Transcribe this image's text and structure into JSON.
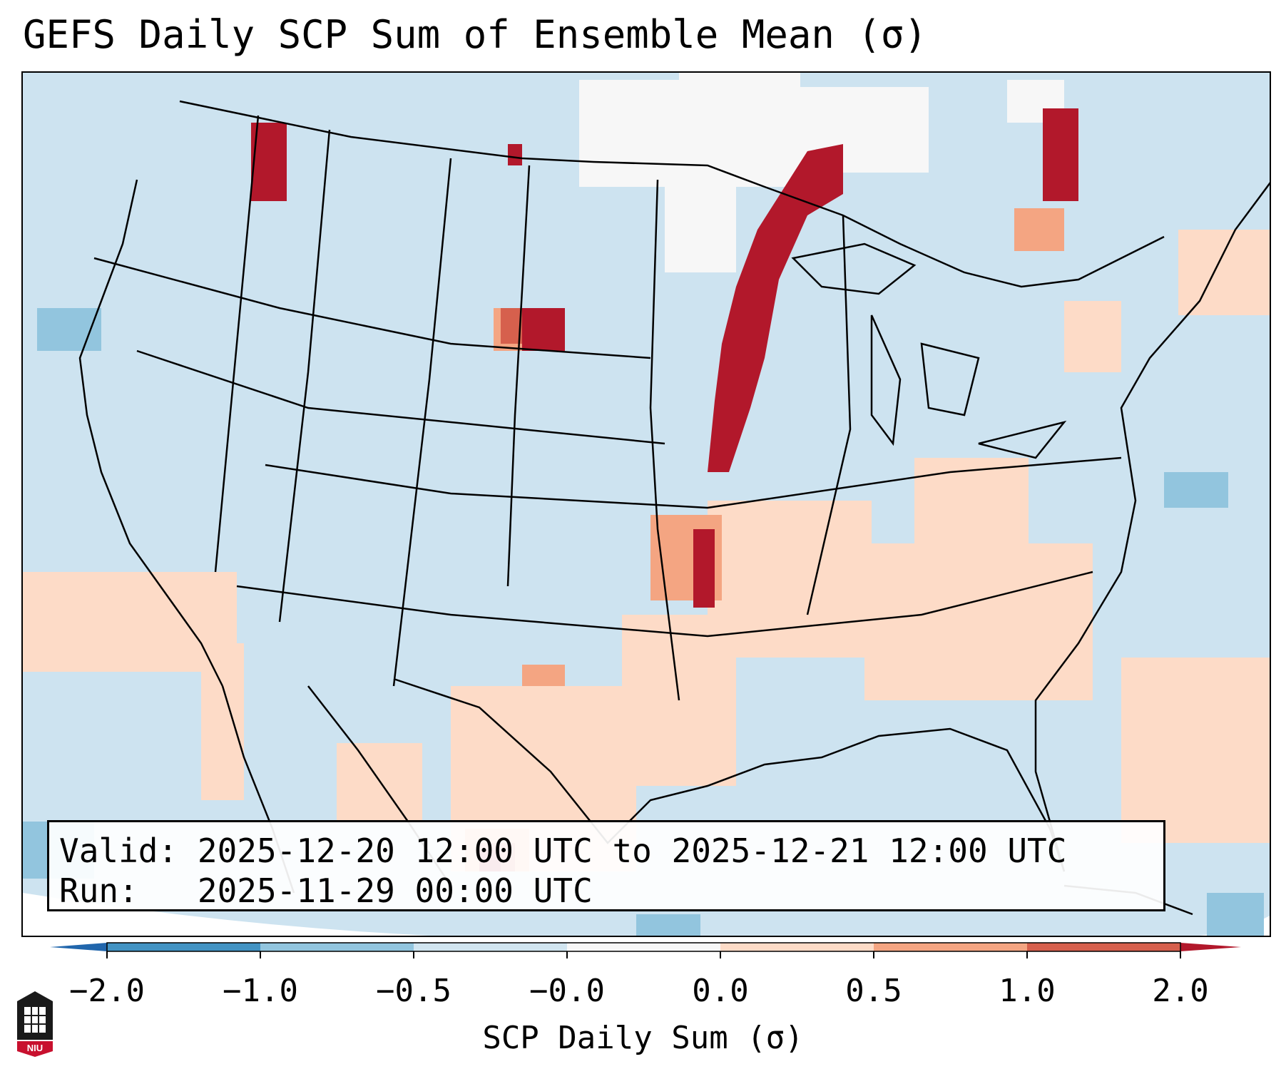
{
  "title": "GEFS Daily SCP Sum of Ensemble Mean (σ)",
  "info": {
    "valid_label": "Valid:",
    "valid_value": "2025-12-20 12:00 UTC to 2025-12-21 12:00 UTC",
    "run_label": "Run:",
    "run_value": "2025-11-29 00:00 UTC"
  },
  "colorbar": {
    "label": "SCP Daily Sum (σ)",
    "ticks": [
      "−2.0",
      "−1.0",
      "−0.5",
      "−0.0",
      "0.0",
      "0.5",
      "1.0",
      "2.0"
    ],
    "colors": [
      "#2166ac",
      "#4393c3",
      "#92c5de",
      "#d1e5f0",
      "#f7f7f7",
      "#fddbc7",
      "#f4a582",
      "#d6604d",
      "#b2182b"
    ]
  },
  "logo": {
    "text": "NIU"
  }
}
